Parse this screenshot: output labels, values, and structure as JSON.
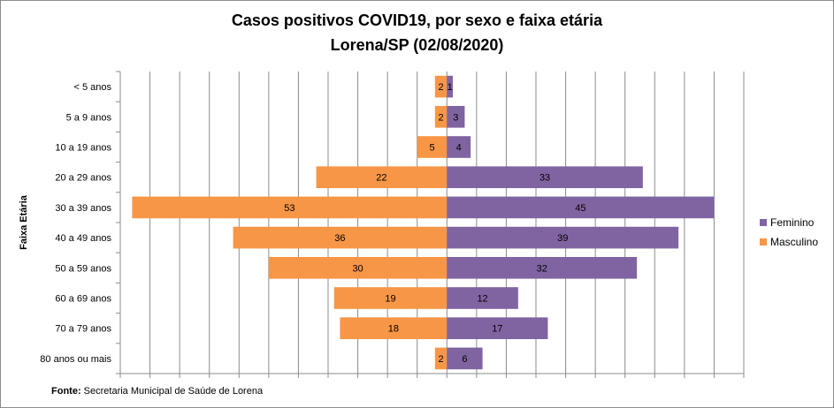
{
  "chart_data": {
    "type": "bar",
    "orientation": "horizontal-population-pyramid",
    "title_line1": "Casos positivos  COVID19, por sexo e faixa etária",
    "title_line2": "Lorena/SP (02/08/2020)",
    "ylabel": "Faixa Etária",
    "categories": [
      "< 5 anos",
      "5 a 9 anos",
      "10 a 19 anos",
      "20 a 29 anos",
      "30 a 39 anos",
      "40 a 49 anos",
      "50 a 59 anos",
      "60 a 69 anos",
      "70 a 79 anos",
      "80 anos ou mais"
    ],
    "series": [
      {
        "name": "Feminino",
        "color": "#8064a2",
        "values": [
          1,
          3,
          4,
          33,
          45,
          39,
          32,
          12,
          17,
          6
        ]
      },
      {
        "name": "Masculino",
        "color": "#f79646",
        "values": [
          2,
          2,
          5,
          22,
          53,
          36,
          30,
          19,
          18,
          2
        ]
      }
    ],
    "xlim": [
      -55,
      50
    ],
    "grid": "vertical",
    "legend_position": "right"
  },
  "footer": {
    "label": "Fonte:",
    "text": " Secretaria Municipal de Saúde de Lorena"
  }
}
